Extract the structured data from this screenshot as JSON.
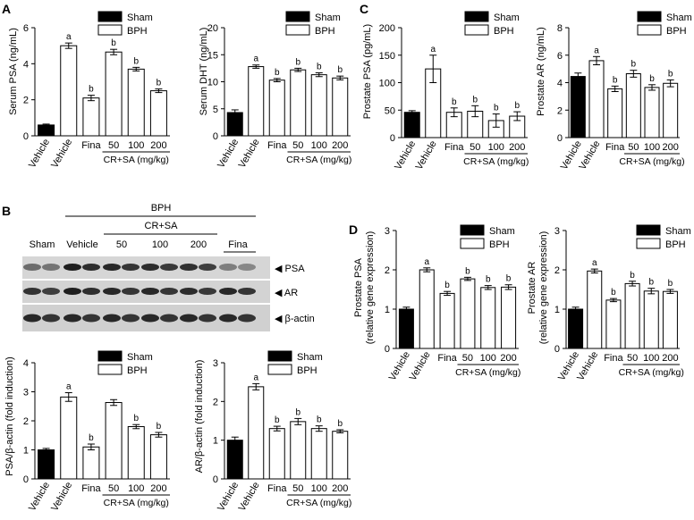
{
  "panel_labels": {
    "A": "A",
    "B": "B",
    "C": "C",
    "D": "D"
  },
  "legend": {
    "sham": "Sham",
    "bph": "BPH"
  },
  "group_axis": {
    "cr_sa": "CR+SA (mg/kg)"
  },
  "blot": {
    "bph_label": "BPH",
    "cr_sa_label": "CR+SA",
    "lanes": [
      "Sham",
      "Vehicle",
      "50",
      "100",
      "200",
      "Fina"
    ],
    "bands": [
      "◀ PSA",
      "◀ AR",
      "◀ β-actin"
    ]
  },
  "chart_data": [
    {
      "id": "A1",
      "type": "bar",
      "ylabel": "Serum PSA (ng/mL)",
      "ylim": [
        0,
        6
      ],
      "yticks": [
        "0",
        "2",
        "4",
        "6"
      ],
      "categories": [
        "Vehicle",
        "Vehicle",
        "Fina",
        "50",
        "100",
        "200"
      ],
      "series": [
        {
          "name": "Sham",
          "values": [
            0.6,
            null,
            null,
            null,
            null,
            null
          ]
        },
        {
          "name": "BPH",
          "values": [
            null,
            5.0,
            2.1,
            4.65,
            3.7,
            2.5
          ]
        }
      ],
      "errors": [
        0.05,
        0.15,
        0.15,
        0.15,
        0.1,
        0.1
      ],
      "sig": [
        "",
        "a",
        "b",
        "b",
        "b",
        "b"
      ]
    },
    {
      "id": "A2",
      "type": "bar",
      "ylabel": "Serum DHT (ng/mL)",
      "ylim": [
        0,
        20
      ],
      "yticks": [
        "0",
        "5",
        "10",
        "15",
        "20"
      ],
      "categories": [
        "Vehicle",
        "Vehicle",
        "Fina",
        "50",
        "100",
        "200"
      ],
      "series": [
        {
          "name": "Sham",
          "values": [
            4.3,
            null,
            null,
            null,
            null,
            null
          ]
        },
        {
          "name": "BPH",
          "values": [
            null,
            12.8,
            10.3,
            12.2,
            11.3,
            10.7
          ]
        }
      ],
      "errors": [
        0.5,
        0.3,
        0.3,
        0.3,
        0.35,
        0.35
      ],
      "sig": [
        "",
        "a",
        "b",
        "b",
        "b",
        "b"
      ]
    },
    {
      "id": "C1",
      "type": "bar",
      "ylabel": "Prostate PSA (pg/mL)",
      "ylim": [
        0,
        200
      ],
      "yticks": [
        "0",
        "50",
        "100",
        "150",
        "200"
      ],
      "categories": [
        "Vehicle",
        "Vehicle",
        "Fina",
        "50",
        "100",
        "200"
      ],
      "series": [
        {
          "name": "Sham",
          "values": [
            46,
            null,
            null,
            null,
            null,
            null
          ]
        },
        {
          "name": "BPH",
          "values": [
            null,
            125,
            46,
            48,
            31,
            39
          ]
        }
      ],
      "errors": [
        3,
        25,
        8,
        10,
        12,
        8
      ],
      "sig": [
        "",
        "a",
        "b",
        "b",
        "b",
        "b"
      ]
    },
    {
      "id": "C2",
      "type": "bar",
      "ylabel": "Prostate AR (ng/mL)",
      "ylim": [
        0,
        8
      ],
      "yticks": [
        "0",
        "2",
        "4",
        "6",
        "8"
      ],
      "categories": [
        "Vehicle",
        "Vehicle",
        "Fina",
        "50",
        "100",
        "200"
      ],
      "series": [
        {
          "name": "Sham",
          "values": [
            4.45,
            null,
            null,
            null,
            null,
            null
          ]
        },
        {
          "name": "BPH",
          "values": [
            null,
            5.6,
            3.55,
            4.65,
            3.65,
            3.95
          ]
        }
      ],
      "errors": [
        0.25,
        0.3,
        0.2,
        0.25,
        0.2,
        0.25
      ],
      "sig": [
        "",
        "a",
        "b",
        "b",
        "b",
        "b"
      ]
    },
    {
      "id": "B1",
      "type": "bar",
      "ylabel": "PSA/β-actin (fold induction)",
      "ylim": [
        0,
        4
      ],
      "yticks": [
        "0",
        "1",
        "2",
        "3",
        "4"
      ],
      "categories": [
        "Vehicle",
        "Vehicle",
        "Fina",
        "50",
        "100",
        "200"
      ],
      "series": [
        {
          "name": "Sham",
          "values": [
            1.0,
            null,
            null,
            null,
            null,
            null
          ]
        },
        {
          "name": "BPH",
          "values": [
            null,
            2.82,
            1.1,
            2.63,
            1.8,
            1.52
          ]
        }
      ],
      "errors": [
        0.05,
        0.15,
        0.1,
        0.1,
        0.07,
        0.08
      ],
      "sig": [
        "",
        "a",
        "b",
        "",
        "b",
        "b"
      ]
    },
    {
      "id": "B2",
      "type": "bar",
      "ylabel": "AR/β-actin (fold induction)",
      "ylim": [
        0,
        3
      ],
      "yticks": [
        "0",
        "1",
        "2",
        "3"
      ],
      "categories": [
        "Vehicle",
        "Vehicle",
        "Fina",
        "50",
        "100",
        "200"
      ],
      "series": [
        {
          "name": "Sham",
          "values": [
            1.0,
            null,
            null,
            null,
            null,
            null
          ]
        },
        {
          "name": "BPH",
          "values": [
            null,
            2.38,
            1.3,
            1.48,
            1.3,
            1.23
          ]
        }
      ],
      "errors": [
        0.08,
        0.08,
        0.06,
        0.08,
        0.07,
        0.04
      ],
      "sig": [
        "",
        "a",
        "b",
        "b",
        "b",
        "b"
      ]
    },
    {
      "id": "D1",
      "type": "bar",
      "ylabel": "Prostate PSA\n(relative gene expression)",
      "ylim": [
        0,
        3
      ],
      "yticks": [
        "0",
        "1",
        "2",
        "3"
      ],
      "categories": [
        "Vehicle",
        "Vehicle",
        "Fina",
        "50",
        "100",
        "200"
      ],
      "series": [
        {
          "name": "Sham",
          "values": [
            1.0,
            null,
            null,
            null,
            null,
            null
          ]
        },
        {
          "name": "BPH",
          "values": [
            null,
            2.0,
            1.4,
            1.77,
            1.55,
            1.56
          ]
        }
      ],
      "errors": [
        0.05,
        0.05,
        0.05,
        0.04,
        0.05,
        0.06
      ],
      "sig": [
        "",
        "a",
        "b",
        "b",
        "b",
        "b"
      ]
    },
    {
      "id": "D2",
      "type": "bar",
      "ylabel": "Prostate AR\n(relative gene expression)",
      "ylim": [
        0,
        3
      ],
      "yticks": [
        "0",
        "1",
        "2",
        "3"
      ],
      "categories": [
        "Vehicle",
        "Vehicle",
        "Fina",
        "50",
        "100",
        "200"
      ],
      "series": [
        {
          "name": "Sham",
          "values": [
            1.0,
            null,
            null,
            null,
            null,
            null
          ]
        },
        {
          "name": "BPH",
          "values": [
            null,
            1.97,
            1.23,
            1.65,
            1.46,
            1.45
          ]
        }
      ],
      "errors": [
        0.05,
        0.05,
        0.04,
        0.06,
        0.07,
        0.05
      ],
      "sig": [
        "",
        "a",
        "b",
        "b",
        "b",
        "b"
      ]
    }
  ]
}
